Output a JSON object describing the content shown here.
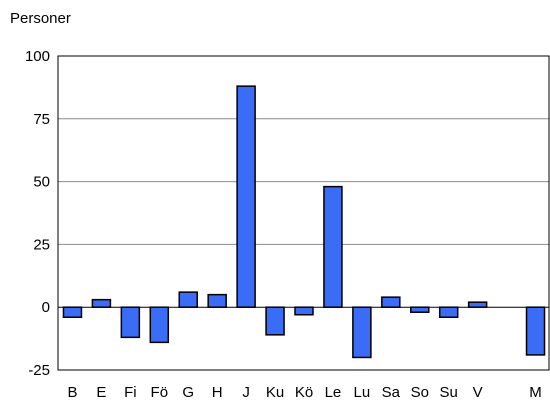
{
  "chart_data": {
    "type": "bar",
    "title": "",
    "xlabel": "",
    "ylabel": "Personer",
    "ylim": [
      -25,
      100
    ],
    "yticks": [
      -25,
      0,
      25,
      50,
      75,
      100
    ],
    "grid": true,
    "legend": "none",
    "categories": [
      "B",
      "E",
      "Fi",
      "Fö",
      "G",
      "H",
      "J",
      "Ku",
      "Kö",
      "Le",
      "Lu",
      "Sa",
      "So",
      "Su",
      "V",
      "",
      "M"
    ],
    "values": [
      -4,
      3,
      -12,
      -14,
      6,
      5,
      88,
      -11,
      -3,
      48,
      -20,
      4,
      -2,
      -4,
      2,
      null,
      -19
    ],
    "colors": {
      "bar_fill": "#3a6cf5",
      "bar_stroke": "#000000",
      "grid": "#8c8c8c",
      "axis": "#000000"
    }
  }
}
